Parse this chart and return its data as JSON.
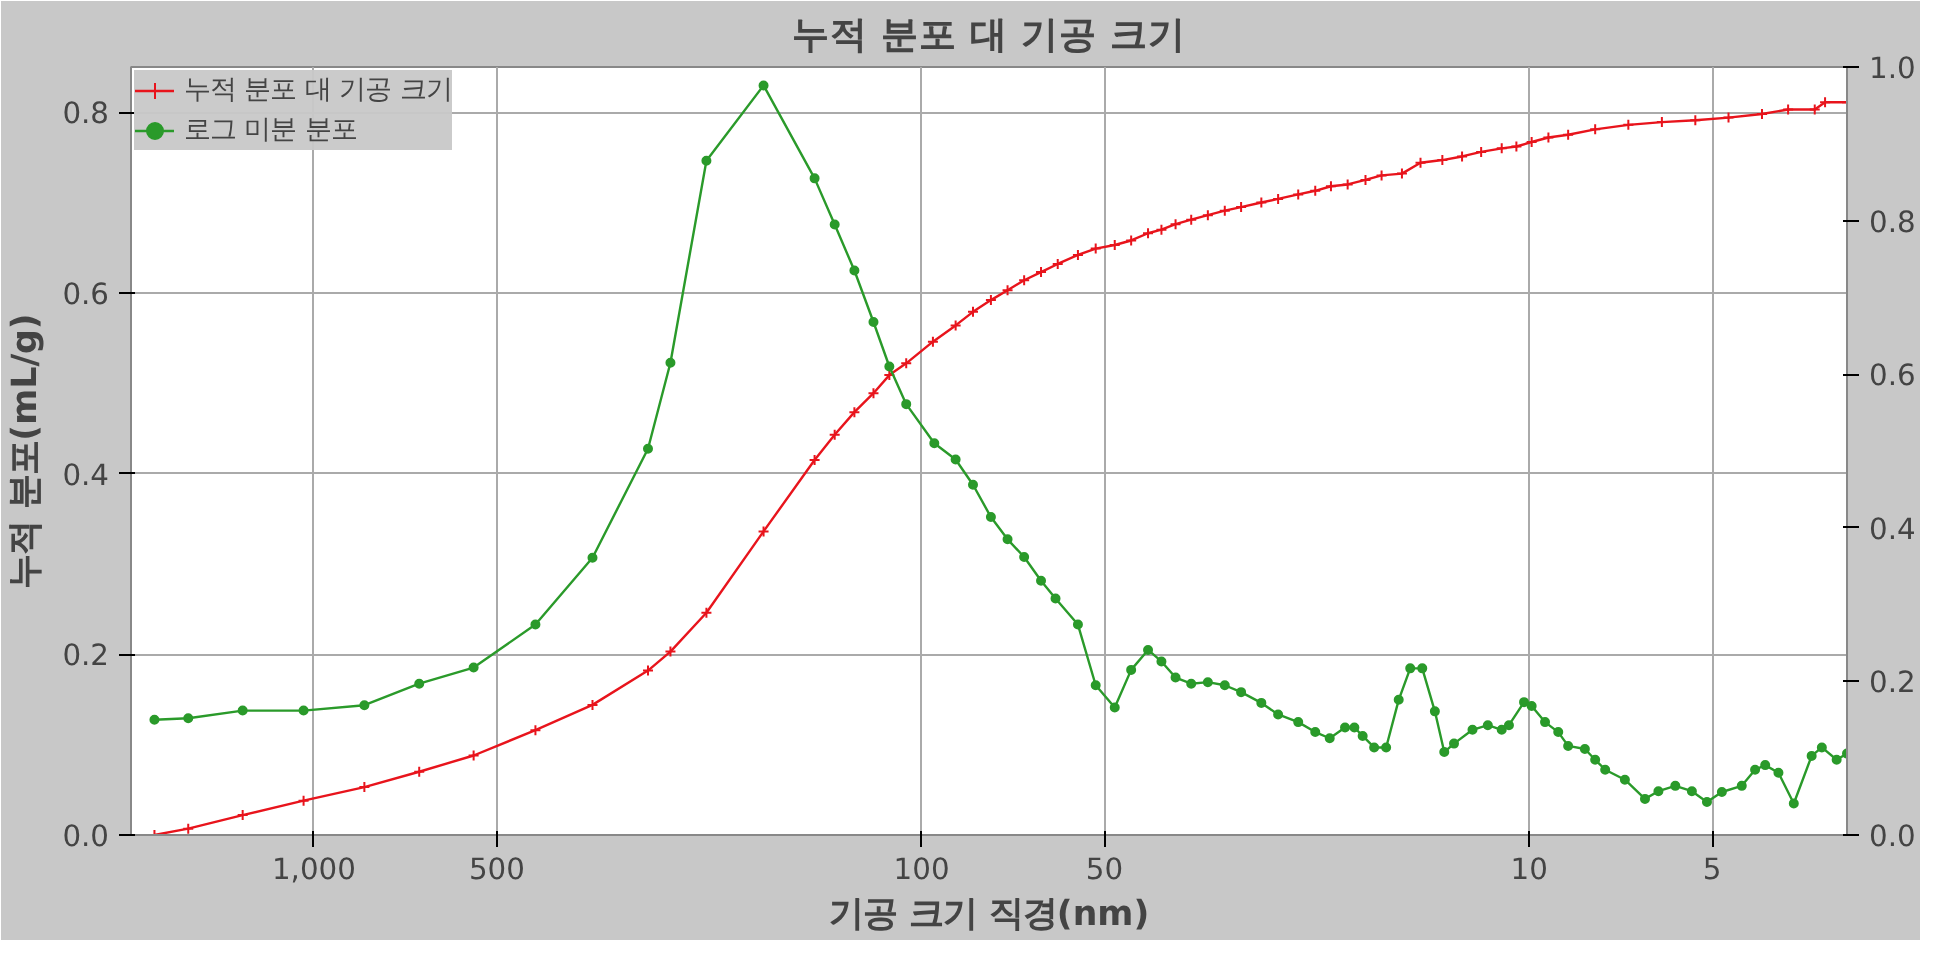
{
  "chart_data": {
    "type": "line",
    "title": "누적 분포 대 기공 크기",
    "xlabel": "기공 크기 직경(nm)",
    "ylabel": "누적 분포(mL/g)",
    "log": "x",
    "grid": true,
    "legend": "top left",
    "line_style": "solid",
    "xlim": [
      2000,
      3
    ],
    "xticks": [
      {
        "value": 1000,
        "label": "1,000"
      },
      500,
      100,
      50,
      10,
      5
    ],
    "ylim": [
      0,
      0.85
    ],
    "yticks": [
      {
        "value": 0,
        "label": "0.0"
      },
      0.2,
      0.4,
      0.6,
      0.8
    ],
    "y2lim": [
      0,
      1.0
    ],
    "y2ticks": [
      {
        "value": 0,
        "label": "0.0"
      },
      0.2,
      0.4,
      0.6,
      0.8,
      {
        "value": 1.0,
        "label": "1.0"
      }
    ],
    "series": [
      {
        "name": "누적 분포 대 기공 크기",
        "color": "#e8141c",
        "marker": "cross",
        "x": [
          1830,
          1610,
          1310,
          1040,
          826,
          671,
          546,
          432,
          348,
          282,
          259,
          226,
          182,
          150,
          139,
          129,
          120,
          113,
          106,
          95.8,
          87.9,
          82.3,
          76.9,
          72.2,
          67.8,
          63.6,
          59.7,
          55.3,
          51.7,
          48.1,
          45.2,
          42.4,
          40.3,
          38.2,
          36.0,
          33.8,
          31.7,
          29.8,
          27.6,
          25.9,
          24.0,
          22.5,
          21.2,
          19.9,
          18.6,
          17.5,
          16.2,
          15.1,
          13.9,
          12.9,
          12.0,
          11.1,
          10.5,
          9.91,
          9.3,
          8.63,
          7.79,
          6.87,
          6.05,
          5.33,
          4.7,
          4.14,
          3.75,
          3.39,
          3.26,
          3.0
        ],
        "values": [
          0,
          0.007,
          0.022,
          0.038,
          0.053,
          0.07,
          0.088,
          0.116,
          0.144,
          0.182,
          0.203,
          0.246,
          0.336,
          0.415,
          0.443,
          0.468,
          0.489,
          0.509,
          0.522,
          0.546,
          0.564,
          0.579,
          0.592,
          0.603,
          0.614,
          0.623,
          0.632,
          0.642,
          0.649,
          0.653,
          0.658,
          0.666,
          0.67,
          0.676,
          0.681,
          0.686,
          0.691,
          0.695,
          0.7,
          0.704,
          0.709,
          0.713,
          0.718,
          0.72,
          0.725,
          0.73,
          0.732,
          0.744,
          0.747,
          0.751,
          0.756,
          0.76,
          0.762,
          0.767,
          0.772,
          0.775,
          0.781,
          0.786,
          0.789,
          0.791,
          0.794,
          0.798,
          0.803,
          0.803,
          0.811,
          0.811
        ]
      },
      {
        "name": "로그 미분 분포",
        "color": "#2a9a2a",
        "marker": "circle",
        "axis": "y2",
        "x": [
          1830,
          1610,
          1310,
          1040,
          826,
          671,
          546,
          432,
          348,
          282,
          259,
          226,
          182,
          150,
          139,
          129,
          120,
          113,
          106,
          95.3,
          87.9,
          82.3,
          76.9,
          72.2,
          67.8,
          63.6,
          60.2,
          55.3,
          51.7,
          48.1,
          45.2,
          42.4,
          40.3,
          38.2,
          36.0,
          33.8,
          31.7,
          29.8,
          27.6,
          25.9,
          24.0,
          22.5,
          21.3,
          20.1,
          19.4,
          18.8,
          18.0,
          17.2,
          16.4,
          15.7,
          15.0,
          14.3,
          13.8,
          13.3,
          12.4,
          11.7,
          11.1,
          10.8,
          10.2,
          9.91,
          9.42,
          8.96,
          8.63,
          8.1,
          7.79,
          7.5,
          6.96,
          6.45,
          6.13,
          5.75,
          5.4,
          5.1,
          4.82,
          4.47,
          4.25,
          4.09,
          3.89,
          3.67,
          3.43,
          3.3,
          3.12,
          3.0
        ],
        "values": [
          0.15,
          0.152,
          0.162,
          0.162,
          0.169,
          0.197,
          0.218,
          0.274,
          0.361,
          0.503,
          0.615,
          0.878,
          0.976,
          0.855,
          0.795,
          0.735,
          0.668,
          0.61,
          0.561,
          0.51,
          0.489,
          0.456,
          0.414,
          0.385,
          0.362,
          0.331,
          0.308,
          0.274,
          0.195,
          0.166,
          0.215,
          0.241,
          0.226,
          0.205,
          0.197,
          0.199,
          0.195,
          0.186,
          0.172,
          0.157,
          0.147,
          0.134,
          0.126,
          0.14,
          0.14,
          0.129,
          0.114,
          0.114,
          0.176,
          0.217,
          0.217,
          0.161,
          0.108,
          0.119,
          0.137,
          0.143,
          0.137,
          0.143,
          0.173,
          0.168,
          0.147,
          0.134,
          0.116,
          0.112,
          0.098,
          0.085,
          0.072,
          0.047,
          0.057,
          0.064,
          0.057,
          0.043,
          0.056,
          0.064,
          0.085,
          0.091,
          0.081,
          0.041,
          0.103,
          0.114,
          0.098,
          0.106
        ]
      }
    ]
  }
}
